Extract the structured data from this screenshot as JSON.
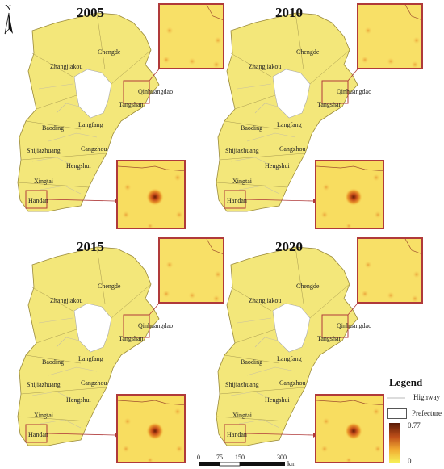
{
  "north": {
    "label": "N"
  },
  "panels": [
    {
      "year": "2005"
    },
    {
      "year": "2010"
    },
    {
      "year": "2015"
    },
    {
      "year": "2020"
    }
  ],
  "cities": {
    "zhangjiakou": "Zhangjiakou",
    "chengde": "Chengde",
    "qinhuangdao": "Qinhuangdao",
    "tangshan": "Tangshan",
    "baoding": "Baoding",
    "langfang": "Langfang",
    "shijiazhuang": "Shijiazhuang",
    "cangzhou": "Cangzhou",
    "hengshui": "Hengshui",
    "xingtai": "Xingtai",
    "handan": "Handan"
  },
  "legend": {
    "title": "Legend",
    "highway": "Highway",
    "prefecture": "Prefecture",
    "max": "0.77",
    "min": "0",
    "colors": {
      "low": "#f7f55a",
      "mid": "#e8a030",
      "high": "#5a1a05"
    },
    "land_color": "#f3e77a",
    "inset_border": "#b03a3a"
  },
  "scalebar": {
    "ticks": [
      "0",
      "75",
      "150",
      "300"
    ],
    "unit": "km"
  }
}
